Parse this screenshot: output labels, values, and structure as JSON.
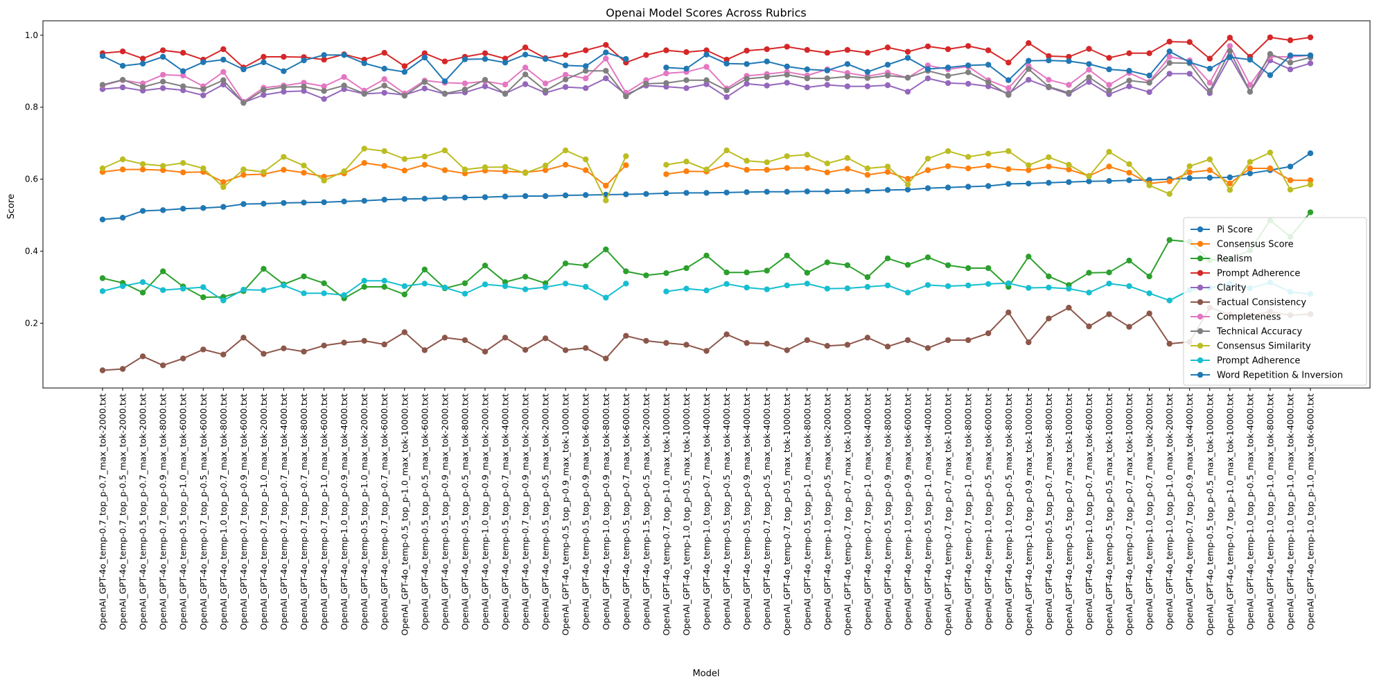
{
  "chart_data": {
    "type": "line",
    "title": "Openai Model Scores Across Rubrics",
    "xlabel": "Model",
    "ylabel": "Score",
    "ylim": [
      0.02,
      1.04
    ],
    "yticks": [
      "0.2",
      "0.4",
      "0.6",
      "0.8",
      "1.0"
    ],
    "ytick_values": [
      0.2,
      0.4,
      0.6,
      0.8,
      1.0
    ],
    "grid": false,
    "legend_position": "right",
    "categories": [
      "OpenAI_GPT-4o_temp-0.7_top_p-0.7_max_tok-2000.txt",
      "OpenAI_GPT-4o_temp-0.7_top_p-0.5_max_tok-2000.txt",
      "OpenAI_GPT-4o_temp-0.5_top_p-0.7_max_tok-2000.txt",
      "OpenAI_GPT-4o_temp-0.7_top_p-0.9_max_tok-8000.txt",
      "OpenAI_GPT-4o_temp-0.5_top_p-1.0_max_tok-6000.txt",
      "OpenAI_GPT-4o_temp-0.7_top_p-0.5_max_tok-6000.txt",
      "OpenAI_GPT-4o_temp-1.0_top_p-0.7_max_tok-8000.txt",
      "OpenAI_GPT-4o_temp-0.7_top_p-0.9_max_tok-6000.txt",
      "OpenAI_GPT-4o_temp-0.7_top_p-1.0_max_tok-2000.txt",
      "OpenAI_GPT-4o_temp-0.7_top_p-0.7_max_tok-4000.txt",
      "OpenAI_GPT-4o_temp-0.7_top_p-0.7_max_tok-8000.txt",
      "OpenAI_GPT-4o_temp-0.7_top_p-1.0_max_tok-6000.txt",
      "OpenAI_GPT-4o_temp-1.0_top_p-0.9_max_tok-4000.txt",
      "OpenAI_GPT-4o_temp-0.5_top_p-1.0_max_tok-2000.txt",
      "OpenAI_GPT-4o_temp-0.7_top_p-0.7_max_tok-6000.txt",
      "OpenAI_GPT-4o_temp-0.5_top_p-1.0_max_tok-10000.txt",
      "OpenAI_GPT-4o_temp-0.5_top_p-0.5_max_tok-6000.txt",
      "OpenAI_GPT-4o_temp-0.5_top_p-0.9_max_tok-2000.txt",
      "OpenAI_GPT-4o_temp-0.5_top_p-0.5_max_tok-8000.txt",
      "OpenAI_GPT-4o_temp-1.0_top_p-0.9_max_tok-2000.txt",
      "OpenAI_GPT-4o_temp-0.5_top_p-0.7_max_tok-4000.txt",
      "OpenAI_GPT-4o_temp-0.7_top_p-0.9_max_tok-2000.txt",
      "OpenAI_GPT-4o_temp-0.5_top_p-0.5_max_tok-2000.txt",
      "OpenAI_GPT-4o_temp-0.5_top_p-0.9_max_tok-10000.txt",
      "OpenAI_GPT-4o_temp-0.5_top_p-0.9_max_tok-6000.txt",
      "OpenAI_GPT-4o_temp-1.0_top_p-0.9_max_tok-8000.txt",
      "OpenAI_GPT-4o_temp-0.5_top_p-0.7_max_tok-6000.txt",
      "OpenAI_GPT-4o_temp-1.5_top_p-0.5_max_tok-2000.txt",
      "OpenAI_GPT-4o_temp-0.7_top_p-1.0_max_tok-10000.txt",
      "OpenAI_GPT-4o_temp-1.0_top_p-0.5_max_tok-10000.txt",
      "OpenAI_GPT-4o_temp-1.0_top_p-0.7_max_tok-4000.txt",
      "OpenAI_GPT-4o_temp-0.5_top_p-0.5_max_tok-4000.txt",
      "OpenAI_GPT-4o_temp-0.5_top_p-0.9_max_tok-4000.txt",
      "OpenAI_GPT-4o_temp-0.7_top_p-0.5_max_tok-4000.txt",
      "OpenAI_GPT-4o_temp-0.7_top_p-0.5_max_tok-10000.txt",
      "OpenAI_GPT-4o_temp-0.5_top_p-1.0_max_tok-8000.txt",
      "OpenAI_GPT-4o_temp-1.0_top_p-0.5_max_tok-2000.txt",
      "OpenAI_GPT-4o_temp-0.7_top_p-0.7_max_tok-10000.txt",
      "OpenAI_GPT-4o_temp-0.7_top_p-1.0_max_tok-4000.txt",
      "OpenAI_GPT-4o_temp-0.5_top_p-0.9_max_tok-8000.txt",
      "OpenAI_GPT-4o_temp-1.0_top_p-0.9_max_tok-6000.txt",
      "OpenAI_GPT-4o_temp-0.5_top_p-1.0_max_tok-4000.txt",
      "OpenAI_GPT-4o_temp-0.7_top_p-0.7_max_tok-10000.txt",
      "OpenAI_GPT-4o_temp-0.7_top_p-1.0_max_tok-8000.txt",
      "OpenAI_GPT-4o_temp-1.0_top_p-0.5_max_tok-6000.txt",
      "OpenAI_GPT-4o_temp-1.0_top_p-0.5_max_tok-8000.txt",
      "OpenAI_GPT-4o_temp-1.0_top_p-0.9_max_tok-10000.txt",
      "OpenAI_GPT-4o_temp-0.5_top_p-0.7_max_tok-8000.txt",
      "OpenAI_GPT-4o_temp-0.5_top_p-0.7_max_tok-10000.txt",
      "OpenAI_GPT-4o_temp-1.0_top_p-0.7_max_tok-6000.txt",
      "OpenAI_GPT-4o_temp-0.5_top_p-0.5_max_tok-10000.txt",
      "OpenAI_GPT-4o_temp-0.7_top_p-0.7_max_tok-10000.txt",
      "OpenAI_GPT-4o_temp-1.0_top_p-0.7_max_tok-2000.txt",
      "OpenAI_GPT-4o_temp-1.0_top_p-1.0_max_tok-2000.txt",
      "OpenAI_GPT-4o_temp-0.7_top_p-0.9_max_tok-4000.txt",
      "OpenAI_GPT-4o_temp-0.5_top_p-0.5_max_tok-10000.txt",
      "OpenAI_GPT-4o_temp-0.7_top_p-1.0_max_tok-10000.txt",
      "OpenAI_GPT-4o_temp-1.0_top_p-0.5_max_tok-4000.txt",
      "OpenAI_GPT-4o_temp-1.0_top_p-1.0_max_tok-8000.txt",
      "OpenAI_GPT-4o_temp-1.0_top_p-1.0_max_tok-4000.txt",
      "OpenAI_GPT-4o_temp-1.0_top_p-1.0_max_tok-6000.txt"
    ],
    "series": [
      {
        "name": "Pi Score",
        "color": "#1f77b4",
        "values": [
          0.488,
          0.493,
          0.512,
          0.514,
          0.518,
          0.52,
          0.523,
          0.531,
          0.532,
          0.534,
          0.535,
          0.536,
          0.538,
          0.54,
          0.543,
          0.545,
          0.546,
          0.548,
          0.549,
          0.55,
          0.552,
          0.553,
          0.553,
          0.555,
          0.556,
          0.557,
          0.558,
          0.559,
          0.561,
          0.562,
          0.562,
          0.563,
          0.564,
          0.565,
          0.565,
          0.566,
          0.566,
          0.567,
          0.568,
          0.57,
          0.571,
          0.575,
          0.577,
          0.579,
          0.581,
          0.587,
          0.588,
          0.59,
          0.592,
          0.594,
          0.595,
          0.597,
          0.598,
          0.6,
          0.603,
          0.604,
          0.605,
          0.616,
          0.625,
          0.635,
          0.672
        ]
      },
      {
        "name": "Consensus Score",
        "color": "#ff7f0e",
        "values": [
          0.62,
          0.627,
          0.627,
          0.625,
          0.619,
          0.62,
          0.592,
          0.612,
          0.614,
          0.626,
          0.618,
          0.607,
          0.616,
          0.645,
          0.637,
          0.624,
          0.64,
          0.625,
          0.616,
          0.624,
          0.622,
          0.619,
          0.625,
          0.64,
          0.625,
          0.582,
          0.639,
          null,
          0.614,
          0.622,
          0.621,
          0.64,
          0.626,
          0.626,
          0.631,
          0.631,
          0.619,
          0.629,
          0.612,
          0.62,
          0.601,
          0.625,
          0.636,
          0.63,
          0.637,
          0.628,
          0.625,
          0.635,
          0.627,
          0.609,
          0.635,
          0.618,
          0.588,
          0.594,
          0.619,
          0.625,
          0.588,
          0.63,
          0.63,
          0.597,
          0.597
        ]
      },
      {
        "name": "Realism",
        "color": "#2ca02c",
        "values": [
          0.325,
          0.312,
          0.285,
          0.344,
          0.302,
          0.272,
          0.273,
          0.289,
          0.351,
          0.308,
          0.33,
          0.311,
          0.269,
          0.301,
          0.301,
          0.28,
          0.349,
          0.297,
          0.311,
          0.36,
          0.314,
          0.329,
          0.311,
          0.366,
          0.36,
          0.405,
          0.344,
          0.333,
          0.339,
          0.353,
          0.388,
          0.341,
          0.341,
          0.346,
          0.388,
          0.34,
          0.369,
          0.361,
          0.328,
          0.38,
          0.362,
          0.383,
          0.361,
          0.353,
          0.353,
          0.301,
          0.385,
          0.33,
          0.306,
          0.34,
          0.341,
          0.374,
          0.33,
          0.431,
          0.426,
          0.375,
          0.379,
          0.402,
          0.486,
          0.44,
          0.508
        ]
      },
      {
        "name": "Prompt Adherence",
        "color": "#d62728",
        "values": [
          0.95,
          0.955,
          0.935,
          0.958,
          0.951,
          0.932,
          0.961,
          0.91,
          0.94,
          0.94,
          0.939,
          0.932,
          0.947,
          0.932,
          0.951,
          0.914,
          0.95,
          0.927,
          0.94,
          0.95,
          0.935,
          0.966,
          0.936,
          0.945,
          0.958,
          0.973,
          0.924,
          0.945,
          0.958,
          0.953,
          0.958,
          0.932,
          0.957,
          0.961,
          0.968,
          0.959,
          0.951,
          0.959,
          0.951,
          0.966,
          0.954,
          0.969,
          0.961,
          0.97,
          0.958,
          0.924,
          0.978,
          0.942,
          0.94,
          0.962,
          0.937,
          0.95,
          0.95,
          0.982,
          0.981,
          0.935,
          0.993,
          0.94,
          0.994,
          0.986,
          0.994
        ]
      },
      {
        "name": "Clarity",
        "color": "#9467bd",
        "values": [
          0.85,
          0.855,
          0.846,
          0.853,
          0.847,
          0.833,
          0.863,
          0.813,
          0.834,
          0.843,
          0.845,
          0.823,
          0.85,
          0.837,
          0.84,
          0.834,
          0.852,
          0.837,
          0.841,
          0.858,
          0.838,
          0.864,
          0.84,
          0.856,
          0.853,
          0.88,
          0.835,
          0.86,
          0.857,
          0.853,
          0.864,
          0.828,
          0.865,
          0.86,
          0.868,
          0.855,
          0.862,
          0.858,
          0.858,
          0.861,
          0.843,
          0.88,
          0.867,
          0.865,
          0.858,
          0.838,
          0.876,
          0.855,
          0.837,
          0.87,
          0.836,
          0.858,
          0.842,
          0.893,
          0.893,
          0.839,
          0.94,
          0.843,
          0.93,
          0.905,
          0.922
        ]
      },
      {
        "name": "Factual Consistency",
        "color": "#8c564b",
        "values": [
          0.069,
          0.073,
          0.108,
          0.083,
          0.102,
          0.127,
          0.113,
          0.16,
          0.115,
          0.13,
          0.121,
          0.138,
          0.146,
          0.151,
          0.141,
          0.175,
          0.125,
          0.16,
          0.153,
          0.121,
          0.16,
          0.126,
          0.158,
          0.125,
          0.131,
          0.102,
          0.165,
          0.151,
          0.145,
          0.14,
          0.123,
          0.169,
          0.145,
          0.143,
          0.125,
          0.153,
          0.137,
          0.14,
          0.16,
          0.135,
          0.153,
          0.131,
          0.153,
          0.153,
          0.172,
          0.23,
          0.147,
          0.213,
          0.243,
          0.191,
          0.225,
          0.19,
          0.227,
          0.143,
          0.148,
          0.243,
          0.224,
          0.221,
          0.232,
          0.222,
          0.225
        ]
      },
      {
        "name": "Completeness",
        "color": "#e377c2",
        "values": [
          0.86,
          0.875,
          0.866,
          0.89,
          0.888,
          0.858,
          0.898,
          0.815,
          0.854,
          0.86,
          0.868,
          0.858,
          0.884,
          0.846,
          0.878,
          0.838,
          0.874,
          0.868,
          0.866,
          0.872,
          0.863,
          0.91,
          0.866,
          0.89,
          0.88,
          0.935,
          0.84,
          0.875,
          0.894,
          0.898,
          0.912,
          0.852,
          0.887,
          0.892,
          0.898,
          0.888,
          0.905,
          0.895,
          0.886,
          0.896,
          0.882,
          0.916,
          0.905,
          0.913,
          0.875,
          0.853,
          0.915,
          0.876,
          0.862,
          0.904,
          0.862,
          0.895,
          0.87,
          0.94,
          0.93,
          0.868,
          0.97,
          0.862,
          0.94,
          0.94,
          0.944
        ]
      },
      {
        "name": "Technical Accuracy",
        "color": "#7f7f7f",
        "values": [
          0.862,
          0.876,
          0.856,
          0.871,
          0.858,
          0.85,
          0.875,
          0.812,
          0.848,
          0.856,
          0.857,
          0.845,
          0.86,
          0.838,
          0.86,
          0.832,
          0.87,
          0.838,
          0.849,
          0.876,
          0.837,
          0.891,
          0.846,
          0.877,
          0.901,
          0.901,
          0.83,
          0.865,
          0.867,
          0.875,
          0.875,
          0.847,
          0.879,
          0.884,
          0.89,
          0.88,
          0.88,
          0.885,
          0.881,
          0.888,
          0.882,
          0.901,
          0.887,
          0.897,
          0.869,
          0.834,
          0.906,
          0.857,
          0.84,
          0.883,
          0.846,
          0.874,
          0.868,
          0.923,
          0.922,
          0.845,
          0.956,
          0.843,
          0.948,
          0.924,
          0.938
        ]
      },
      {
        "name": "Consensus Similarity",
        "color": "#bcbd22",
        "values": [
          0.63,
          0.655,
          0.642,
          0.637,
          0.645,
          0.63,
          0.578,
          0.627,
          0.62,
          0.662,
          0.638,
          0.596,
          0.622,
          0.685,
          0.678,
          0.656,
          0.663,
          0.68,
          0.627,
          0.633,
          0.634,
          0.617,
          0.638,
          0.68,
          0.655,
          0.541,
          0.664,
          null,
          0.64,
          0.649,
          0.627,
          0.68,
          0.651,
          0.647,
          0.664,
          0.668,
          0.644,
          0.659,
          0.63,
          0.635,
          0.585,
          0.657,
          0.678,
          0.662,
          0.671,
          0.678,
          0.639,
          0.661,
          0.64,
          0.608,
          0.676,
          0.642,
          0.583,
          0.559,
          0.636,
          0.655,
          0.57,
          0.648,
          0.674,
          0.571,
          0.585
        ]
      },
      {
        "name": "Prompt Adherence",
        "color": "#17becf",
        "values": [
          0.289,
          0.303,
          0.314,
          0.292,
          0.296,
          0.3,
          0.263,
          0.293,
          0.292,
          0.305,
          0.283,
          0.283,
          0.278,
          0.318,
          0.318,
          0.303,
          0.31,
          0.299,
          0.282,
          0.308,
          0.303,
          0.294,
          0.3,
          0.31,
          0.301,
          0.271,
          0.31,
          null,
          0.288,
          0.296,
          0.291,
          0.309,
          0.299,
          0.294,
          0.305,
          0.31,
          0.296,
          0.297,
          0.301,
          0.305,
          0.285,
          0.306,
          0.303,
          0.305,
          0.309,
          0.311,
          0.298,
          0.299,
          0.296,
          0.285,
          0.31,
          0.303,
          0.283,
          0.263,
          0.292,
          0.298,
          0.309,
          0.297,
          0.313,
          0.287,
          0.281
        ]
      },
      {
        "name": "Word Repetition & Inversion",
        "color": "#1f77b4",
        "values": [
          0.942,
          0.915,
          0.921,
          0.94,
          0.9,
          0.925,
          0.932,
          0.905,
          0.925,
          0.9,
          0.93,
          0.945,
          0.945,
          0.922,
          0.907,
          0.898,
          0.938,
          0.872,
          0.933,
          0.934,
          0.924,
          0.946,
          0.934,
          0.916,
          0.914,
          0.952,
          0.934,
          null,
          0.91,
          0.907,
          0.946,
          0.921,
          0.92,
          0.927,
          0.913,
          0.905,
          0.902,
          0.92,
          0.898,
          0.918,
          0.937,
          0.906,
          0.91,
          0.916,
          0.918,
          0.875,
          0.929,
          0.93,
          0.928,
          0.92,
          0.905,
          0.901,
          0.888,
          0.955,
          0.925,
          0.907,
          0.939,
          0.932,
          0.889,
          0.944,
          0.944
        ]
      }
    ]
  }
}
